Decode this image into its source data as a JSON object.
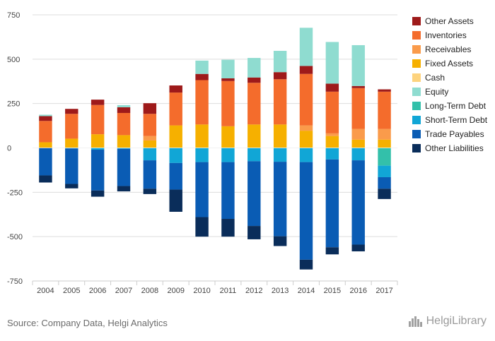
{
  "source_text": "Source: Company Data, Helgi Analytics",
  "brand_text": "HelgiLibrary",
  "chart_data": {
    "type": "bar",
    "stacked": true,
    "categories": [
      "2004",
      "2005",
      "2006",
      "2007",
      "2008",
      "2009",
      "2010",
      "2011",
      "2012",
      "2013",
      "2014",
      "2015",
      "2016",
      "2017"
    ],
    "ylim": [
      -750,
      750
    ],
    "yticks": [
      -750,
      -500,
      -250,
      0,
      250,
      500,
      750
    ],
    "ytick_labels": [
      "-750",
      "-500",
      "-250",
      "0",
      "250",
      "500",
      "750"
    ],
    "grid": true,
    "legend_position": "right",
    "series": [
      {
        "name": "Cash",
        "side": "asset",
        "color": "#fdd37e",
        "values": [
          2,
          2,
          2,
          2,
          2,
          2,
          2,
          2,
          2,
          2,
          2,
          2,
          2,
          2
        ]
      },
      {
        "name": "Fixed Assets",
        "side": "asset",
        "color": "#f6b000",
        "values": [
          30,
          50,
          75,
          70,
          40,
          125,
          130,
          120,
          130,
          130,
          95,
          65,
          45,
          45
        ]
      },
      {
        "name": "Receivables",
        "side": "asset",
        "color": "#fa9b4b",
        "values": [
          0,
          0,
          0,
          0,
          25,
          0,
          0,
          0,
          0,
          0,
          30,
          15,
          60,
          60
        ]
      },
      {
        "name": "Inventories",
        "side": "asset",
        "color": "#f46c2c",
        "values": [
          120,
          140,
          165,
          125,
          125,
          185,
          250,
          255,
          235,
          255,
          290,
          235,
          230,
          210
        ]
      },
      {
        "name": "Other Assets",
        "side": "asset",
        "color": "#9e1a1a",
        "values": [
          27,
          28,
          30,
          32,
          60,
          40,
          35,
          15,
          30,
          40,
          45,
          45,
          12,
          13
        ]
      },
      {
        "name": "Equity",
        "side": "asset",
        "color": "#8fdcd0",
        "values": [
          8,
          0,
          0,
          12,
          0,
          0,
          75,
          105,
          110,
          120,
          215,
          235,
          230,
          0
        ]
      },
      {
        "name": "Long-Term Debt",
        "side": "liability",
        "color": "#33c0aa",
        "values": [
          0,
          0,
          0,
          0,
          0,
          0,
          0,
          0,
          0,
          0,
          0,
          0,
          0,
          100
        ]
      },
      {
        "name": "Short-Term Debt",
        "side": "liability",
        "color": "#11a6d6",
        "values": [
          0,
          3,
          10,
          5,
          70,
          85,
          80,
          80,
          75,
          78,
          80,
          65,
          70,
          65
        ]
      },
      {
        "name": "Trade Payables",
        "side": "liability",
        "color": "#0a5cb4",
        "values": [
          155,
          200,
          230,
          210,
          160,
          150,
          310,
          320,
          365,
          420,
          550,
          495,
          475,
          65
        ]
      },
      {
        "name": "Other Liabilities",
        "side": "liability",
        "color": "#0a2d5a",
        "values": [
          40,
          25,
          35,
          30,
          30,
          125,
          110,
          100,
          75,
          55,
          55,
          40,
          38,
          58
        ]
      }
    ],
    "colors": {
      "grid": "#dddddd",
      "axis": "#cccccc",
      "tick_text": "#444444"
    }
  }
}
